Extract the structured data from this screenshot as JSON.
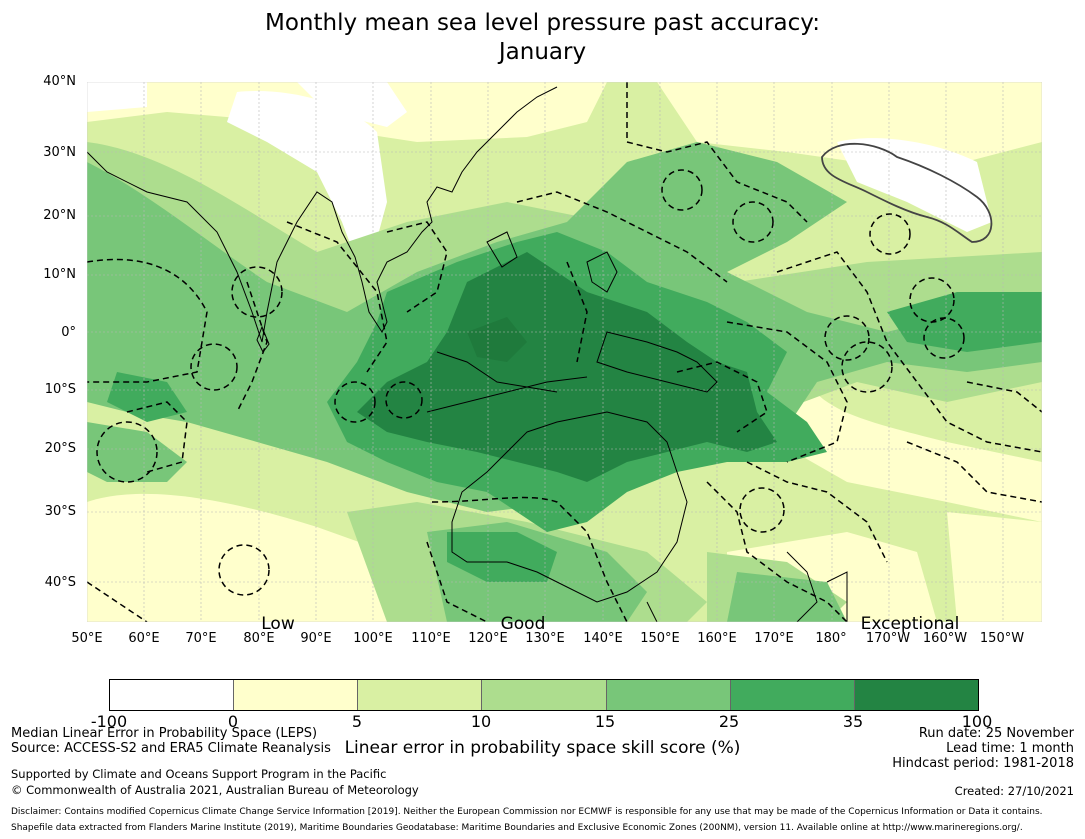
{
  "title": {
    "line1": "Monthly mean sea level pressure past accuracy:",
    "line2": "January"
  },
  "map": {
    "lat_labels": [
      "40°N",
      "30°N",
      "20°N",
      "10°N",
      "0°",
      "10°S",
      "20°S",
      "30°S",
      "40°S"
    ],
    "lon_labels": [
      "50°E",
      "60°E",
      "70°E",
      "80°E",
      "90°E",
      "100°E",
      "110°E",
      "120°E",
      "130°E",
      "140°E",
      "150°E",
      "160°E",
      "170°E",
      "180°",
      "170°W",
      "160°W",
      "150°W"
    ],
    "category_labels": [
      "Low",
      "Good",
      "Exceptional"
    ]
  },
  "colorbar": {
    "ticks": [
      "-100",
      "0",
      "5",
      "10",
      "15",
      "25",
      "35",
      "100"
    ],
    "label": "Linear error in probability space skill score (%)",
    "colors": [
      "#ffffff",
      "#ffffcc",
      "#d9f0a3",
      "#addd8e",
      "#78c679",
      "#41ab5d",
      "#238443"
    ]
  },
  "footer": {
    "left1": "Median Linear Error in Probability Space (LEPS)",
    "left2": "Source: ACCESS-S2 and ERA5 Climate Reanalysis",
    "left3": "Supported by Climate and Oceans Support Program in the Pacific",
    "left4": "© Commonwealth of Australia 2021, Australian Bureau of Meteorology",
    "right1": "Run date: 25 November",
    "right2": "Lead time: 1 month",
    "right3": "Hindcast period: 1981-2018",
    "right4": "Created: 27/10/2021",
    "disclaimer1": "Disclaimer: Contains modified Copernicus Climate Change Service Information [2019]. Neither the European Commission nor ECMWF is responsible for any use that may be made of the Copernicus Information or Data it contains.",
    "disclaimer2": "Shapefile data extracted from Flanders Marine Institute (2019), Maritime Boundaries Geodatabase: Maritime Boundaries and Exclusive Economic Zones (200NM), version 11. Available online at http://www.marineregions.org/."
  }
}
